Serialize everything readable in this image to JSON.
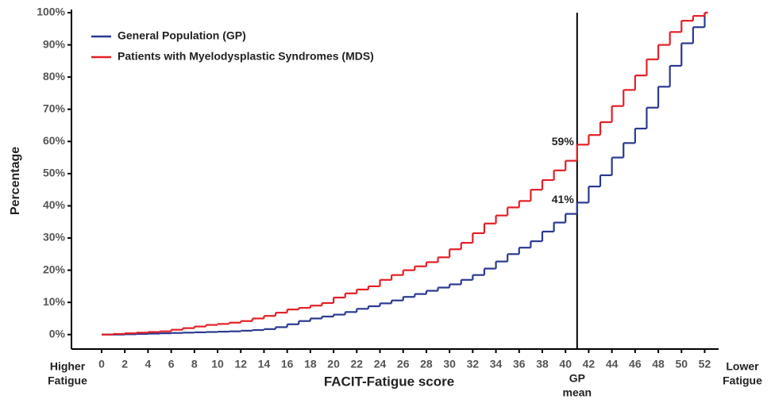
{
  "chart_data": {
    "type": "step",
    "x_label": "FACIT-Fatigue score",
    "y_label": "Percentage",
    "x": [
      0,
      1,
      2,
      3,
      4,
      5,
      6,
      7,
      8,
      9,
      10,
      11,
      12,
      13,
      14,
      15,
      16,
      17,
      18,
      19,
      20,
      21,
      22,
      23,
      24,
      25,
      26,
      27,
      28,
      29,
      30,
      31,
      32,
      33,
      34,
      35,
      36,
      37,
      38,
      39,
      40,
      41,
      42,
      43,
      44,
      45,
      46,
      47,
      48,
      49,
      50,
      51,
      52
    ],
    "series": [
      {
        "name": "General Population (GP)",
        "color": "#2b3990",
        "values": [
          0,
          0,
          0.1,
          0.2,
          0.3,
          0.4,
          0.5,
          0.6,
          0.7,
          0.8,
          0.9,
          1.0,
          1.2,
          1.4,
          1.7,
          2.3,
          3.2,
          4.2,
          5.0,
          5.6,
          6.2,
          7.0,
          8.0,
          8.8,
          9.7,
          10.6,
          11.7,
          12.6,
          13.6,
          14.6,
          15.6,
          17,
          18.5,
          20.5,
          22.7,
          25,
          27,
          29,
          32,
          34.8,
          37.5,
          41,
          46,
          49.5,
          55,
          59.5,
          64,
          70.5,
          77,
          83.5,
          90.5,
          95.5,
          100
        ]
      },
      {
        "name": "Patients with Myelodysplastic Syndromes (MDS)",
        "color": "#e41f26",
        "values": [
          0,
          0.2,
          0.4,
          0.6,
          0.8,
          1.0,
          1.5,
          2.0,
          2.5,
          3.0,
          3.3,
          3.7,
          4.2,
          5.0,
          5.8,
          6.8,
          7.8,
          8.3,
          9.0,
          9.8,
          11.5,
          12.8,
          14,
          15,
          17,
          18.5,
          20,
          21.2,
          22.5,
          24,
          26.5,
          28.5,
          31.5,
          34.5,
          37,
          39.5,
          41.5,
          45,
          48,
          51,
          54,
          59,
          62,
          66,
          71,
          76,
          80.5,
          85.5,
          90,
          94,
          97.5,
          99,
          100
        ]
      }
    ],
    "xlim": [
      -2.6,
      53.2
    ],
    "xticks": [
      0,
      2,
      4,
      6,
      8,
      10,
      12,
      14,
      16,
      18,
      20,
      22,
      24,
      26,
      28,
      30,
      32,
      34,
      36,
      38,
      40,
      42,
      44,
      46,
      48,
      50,
      52
    ],
    "ylim": [
      -4.5,
      100
    ],
    "yticks": [
      {
        "value": 0,
        "label": "0%"
      },
      {
        "value": 10,
        "label": "10%"
      },
      {
        "value": 20,
        "label": "20%"
      },
      {
        "value": 30,
        "label": "30%"
      },
      {
        "value": 40,
        "label": "40%"
      },
      {
        "value": 50,
        "label": "50%"
      },
      {
        "value": 60,
        "label": "60%"
      },
      {
        "value": 70,
        "label": "70%"
      },
      {
        "value": 80,
        "label": "80%"
      },
      {
        "value": 90,
        "label": "90%"
      },
      {
        "value": 100,
        "label": "100%"
      }
    ],
    "reference_line": {
      "x": 41,
      "label": [
        "GP",
        "mean"
      ]
    },
    "annotations": [
      {
        "x": 41,
        "y": 59,
        "label": "59%"
      },
      {
        "x": 41,
        "y": 41,
        "label": "41%"
      }
    ],
    "left_end_label": [
      "Higher",
      "Fatigue"
    ],
    "right_end_label": [
      "Lower",
      "Fatigue"
    ],
    "legend": "upper left"
  }
}
